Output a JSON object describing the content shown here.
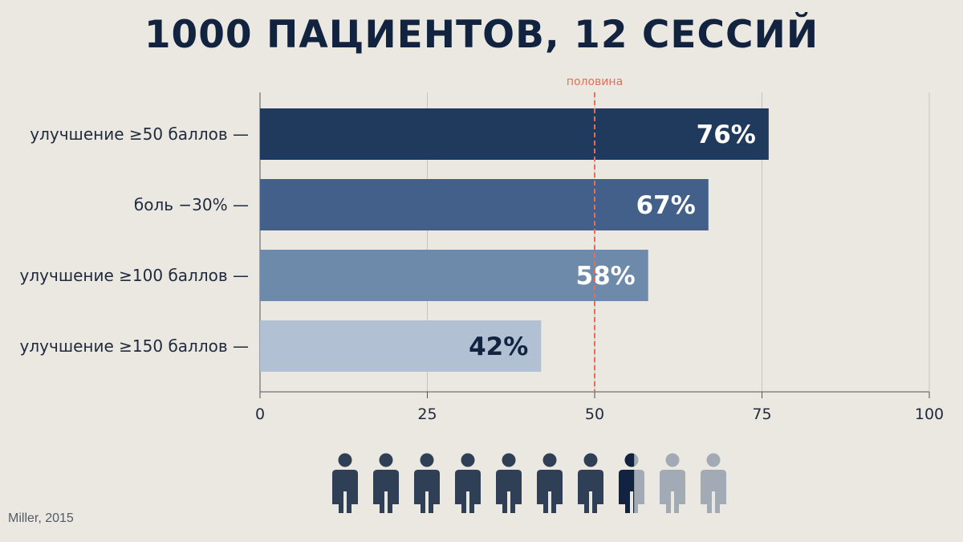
{
  "title": "1000 ПАЦИЕНТОВ, 12 СЕССИЙ",
  "source": "Miller, 2015",
  "chart_data": {
    "type": "bar",
    "orientation": "horizontal",
    "categories": [
      "улучшение ≥50 баллов —",
      "боль −30% —",
      "улучшение ≥100 баллов —",
      "улучшение ≥150 баллов —"
    ],
    "values": [
      76,
      67,
      58,
      42
    ],
    "value_labels": [
      "76%",
      "67%",
      "58%",
      "42%"
    ],
    "bar_colors": [
      "#203a5e",
      "#43608a",
      "#6e8aab",
      "#b1c0d2"
    ],
    "label_colors": [
      "#ffffff",
      "#ffffff",
      "#ffffff",
      "#12233f"
    ],
    "xlim": [
      0,
      100
    ],
    "xticks": [
      0,
      25,
      50,
      75,
      100
    ],
    "grid": true,
    "reference_line": {
      "value": 50,
      "label": "половина",
      "color": "#e0705a"
    }
  },
  "pictogram": {
    "total_icons": 10,
    "filled_fraction": 0.76,
    "filled_color": "#2f3f55",
    "highlight_color": "#12233f",
    "empty_color": "#a2abb5"
  }
}
